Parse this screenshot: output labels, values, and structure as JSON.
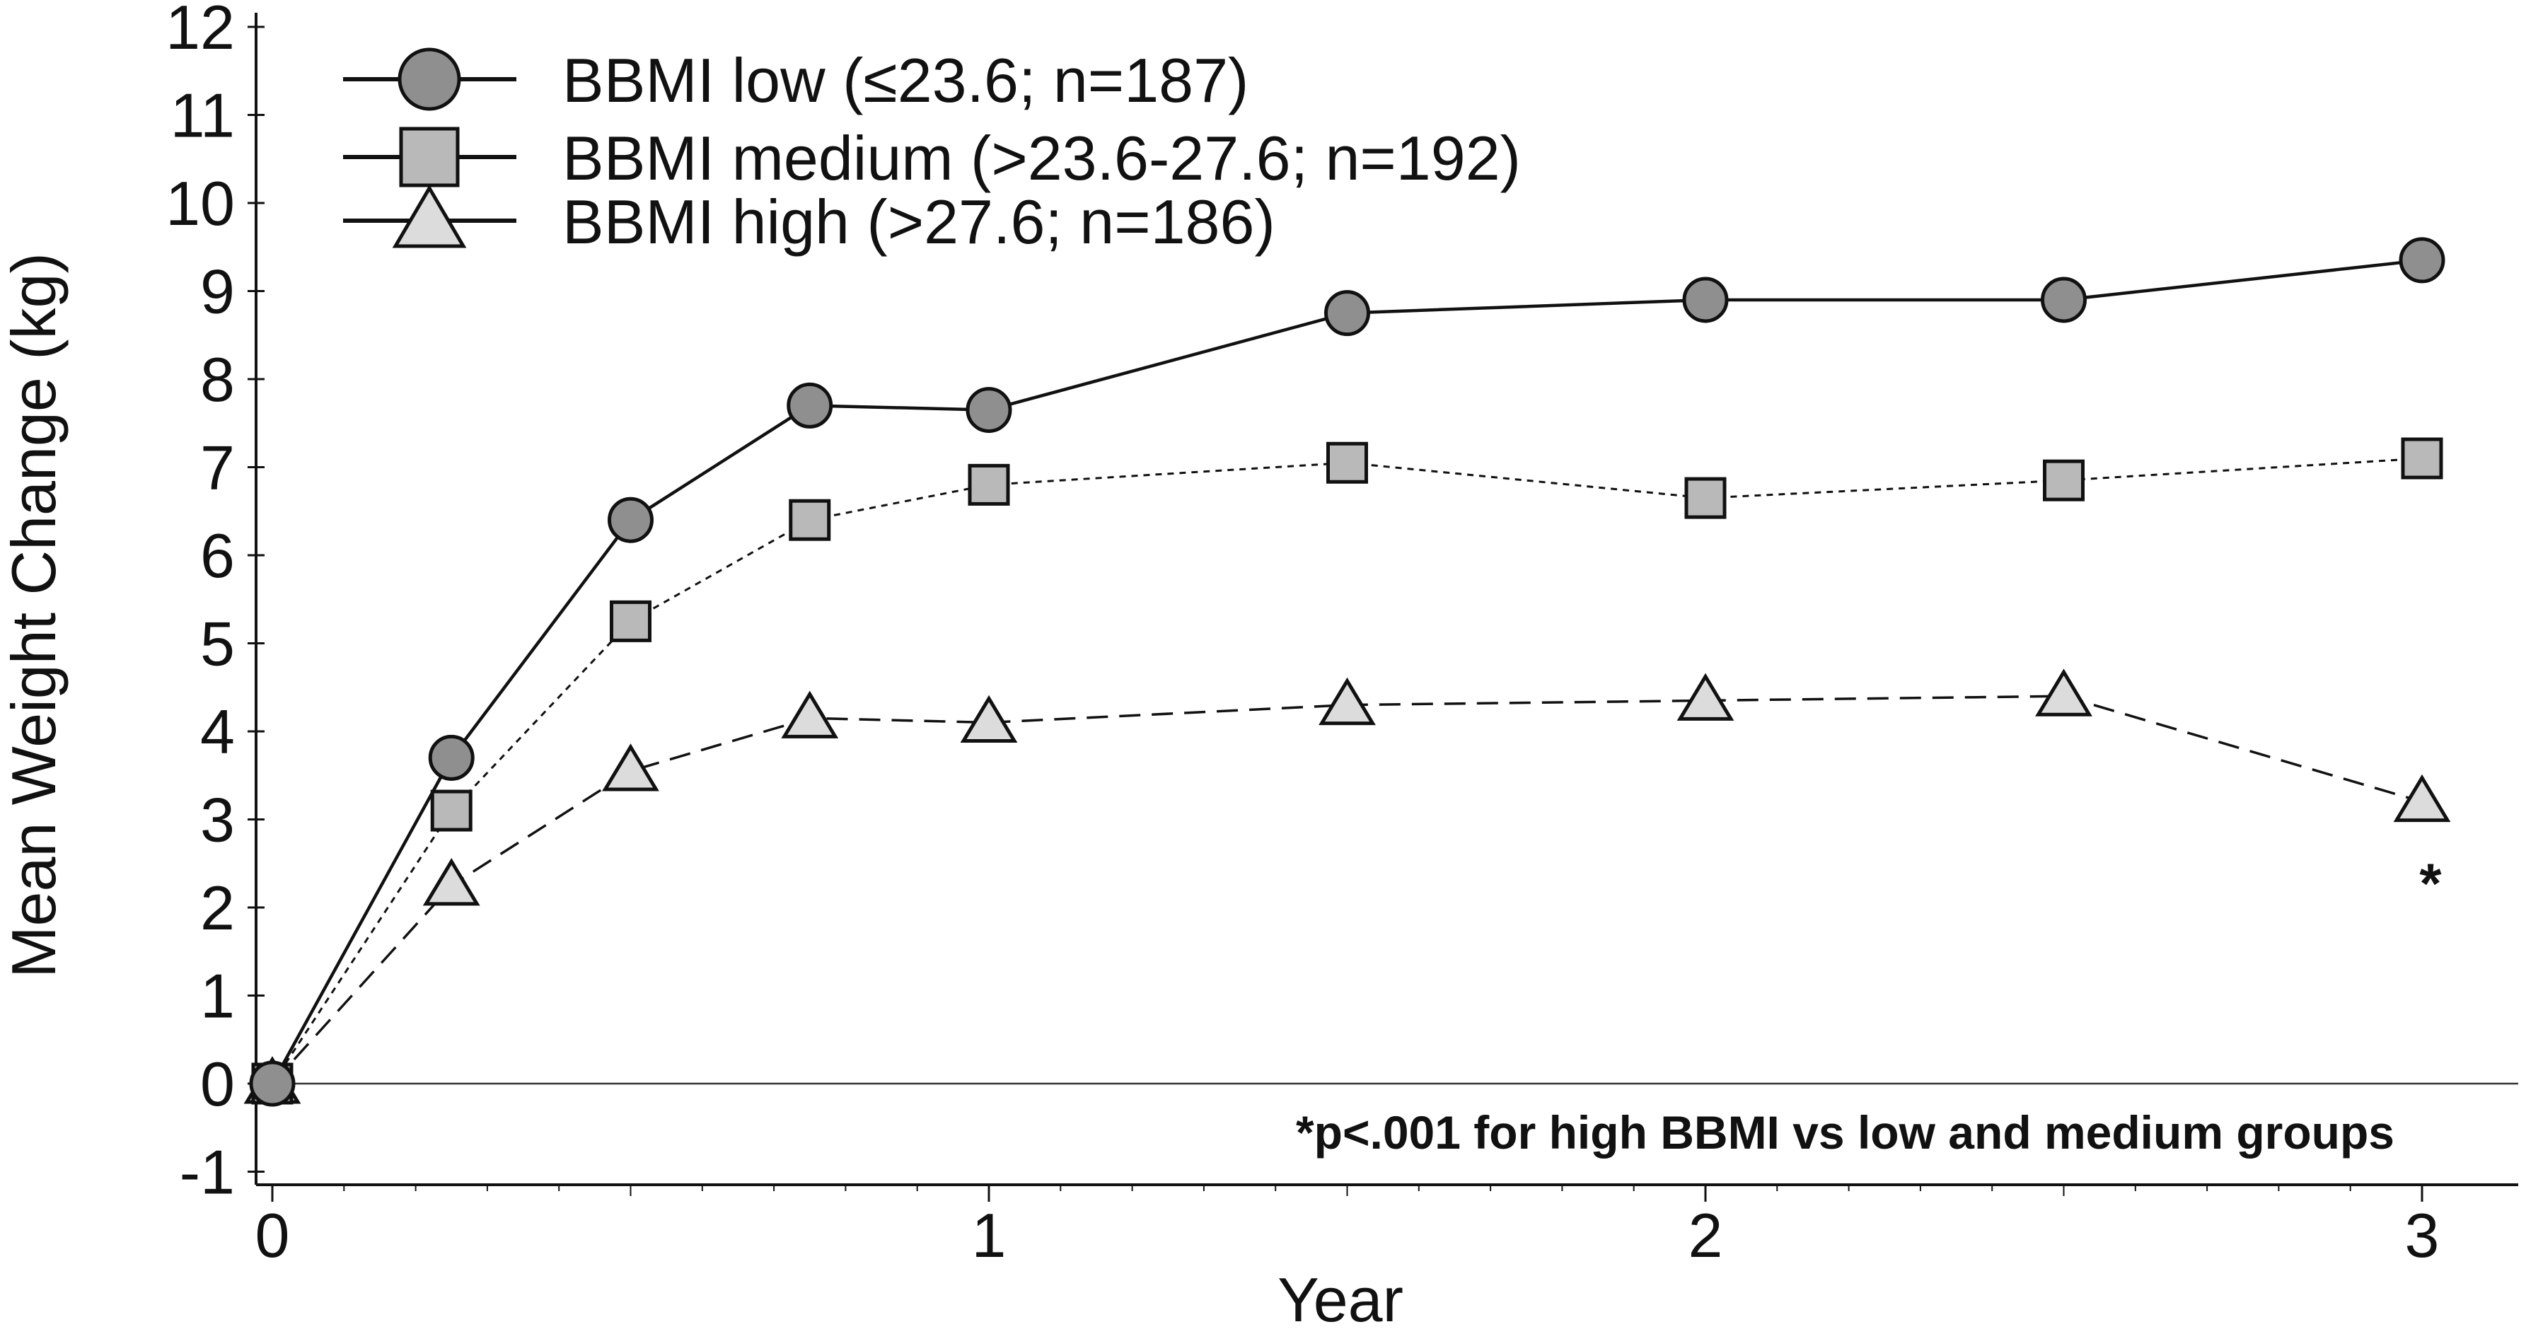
{
  "chart_data": {
    "type": "line",
    "xlabel": "Year",
    "ylabel": "Mean Weight Change (kg)",
    "xlim": [
      0,
      3
    ],
    "ylim": [
      -1,
      12
    ],
    "x_ticks": [
      "0",
      "1",
      "2",
      "3"
    ],
    "y_ticks": [
      "-1",
      "0",
      "1",
      "2",
      "3",
      "4",
      "5",
      "6",
      "7",
      "8",
      "9",
      "10",
      "11",
      "12"
    ],
    "x": [
      0,
      0.25,
      0.5,
      0.75,
      1,
      1.5,
      2,
      2.5,
      3
    ],
    "legend_position": "top-left",
    "grid": false,
    "series": [
      {
        "name": "BBMI low (≤23.6; n=187)",
        "marker": "circle",
        "line_style": "solid",
        "fill": "#8f8f8f",
        "values": [
          0,
          3.7,
          6.4,
          7.7,
          7.65,
          8.75,
          8.9,
          8.9,
          9.35
        ]
      },
      {
        "name": "BBMI medium (>23.6-27.6; n=192)",
        "marker": "square",
        "line_style": "dotted",
        "fill": "#b9b9b9",
        "values": [
          0,
          3.1,
          5.25,
          6.4,
          6.8,
          7.05,
          6.65,
          6.85,
          7.1
        ]
      },
      {
        "name": "BBMI high (>27.6; n=186)",
        "marker": "triangle",
        "line_style": "dashed",
        "fill": "#dcdcdc",
        "values": [
          0,
          2.25,
          3.55,
          4.15,
          4.1,
          4.3,
          4.35,
          4.4,
          3.2
        ]
      }
    ],
    "annotations": [
      {
        "text": "*",
        "x": 3,
        "y": 2.55
      },
      {
        "text": "*p<.001 for high BBMI vs low and medium groups"
      }
    ]
  }
}
